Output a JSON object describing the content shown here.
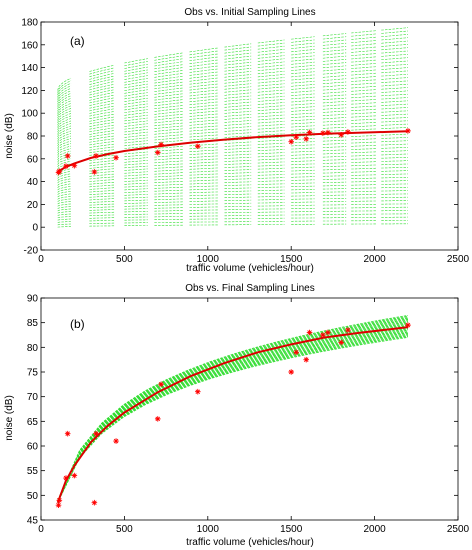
{
  "colors": {
    "sampling_lines": "#33dd33",
    "fit_line": "#dd0000",
    "observations": "#ff0000",
    "axes": "#000000"
  },
  "chart_data": [
    {
      "type": "line",
      "title": "Obs vs. Initial Sampling Lines",
      "panel_label": "(a)",
      "xlabel": "traffic volume (vehicles/hour)",
      "ylabel": "noise (dB)",
      "xlim": [
        0,
        2500
      ],
      "ylim": [
        -20,
        180
      ],
      "xticks": [
        0,
        500,
        1000,
        1500,
        2000,
        2500
      ],
      "yticks": [
        -20,
        0,
        20,
        40,
        60,
        80,
        100,
        120,
        140,
        160,
        180
      ],
      "series": [
        {
          "kind": "sampling_lines",
          "style": "dashed",
          "x_start": 100,
          "x_end": 2200,
          "x_segments": [
            [
              100,
              180
            ],
            [
              290,
              440
            ],
            [
              500,
              640
            ],
            [
              680,
              850
            ],
            [
              890,
              1060
            ],
            [
              1100,
              1260
            ],
            [
              1300,
              1460
            ],
            [
              1500,
              1640
            ],
            [
              1690,
              1830
            ],
            [
              1860,
              2010
            ],
            [
              2040,
              2200
            ]
          ],
          "min_at_start": 0,
          "max_at_start": 120,
          "min_at_end": 3,
          "max_at_end": 175
        },
        {
          "kind": "fit",
          "style": "solid",
          "x": [
            100,
            150,
            200,
            300,
            400,
            500,
            700,
            900,
            1100,
            1300,
            1500,
            1700,
            1900,
            2100,
            2200
          ],
          "y": [
            48.5,
            53.0,
            56.0,
            60.8,
            64.1,
            66.8,
            70.9,
            74.2,
            76.8,
            79.0,
            80.6,
            82.0,
            82.9,
            83.7,
            84.1
          ]
        },
        {
          "kind": "observations",
          "style": "asterisk",
          "x": [
            105,
            110,
            150,
            160,
            200,
            320,
            330,
            450,
            700,
            720,
            940,
            1500,
            1530,
            1590,
            1610,
            1690,
            1720,
            1800,
            1840,
            2200
          ],
          "y": [
            48,
            49,
            53.5,
            62.5,
            54,
            48.5,
            62.5,
            61,
            65.5,
            72.5,
            71,
            75,
            79,
            77.5,
            83,
            82.5,
            83,
            81,
            83.5,
            84.5
          ]
        }
      ]
    },
    {
      "type": "line",
      "title": "Obs vs. Final Sampling Lines",
      "panel_label": "(b)",
      "xlabel": "traffic volume (vehicles/hour)",
      "ylabel": "noise (dB)",
      "xlim": [
        0,
        2500
      ],
      "ylim": [
        45,
        90
      ],
      "xticks": [
        0,
        500,
        1000,
        1500,
        2000,
        2500
      ],
      "yticks": [
        45,
        50,
        55,
        60,
        65,
        70,
        75,
        80,
        85,
        90
      ],
      "series": [
        {
          "kind": "sampling_lines",
          "style": "dashed",
          "x_start": 100,
          "x_end": 2200,
          "min_at_start": 48.5,
          "max_at_start": 49.0,
          "min_at_end": 82.0,
          "max_at_end": 86.5
        },
        {
          "kind": "fit",
          "style": "solid",
          "x": [
            100,
            150,
            200,
            300,
            400,
            500,
            700,
            900,
            1100,
            1300,
            1500,
            1700,
            1900,
            2100,
            2200
          ],
          "y": [
            48.5,
            53.0,
            56.0,
            60.8,
            64.1,
            66.8,
            70.9,
            74.2,
            76.8,
            79.0,
            80.6,
            82.0,
            82.9,
            83.7,
            84.1
          ]
        },
        {
          "kind": "observations",
          "style": "asterisk",
          "x": [
            105,
            110,
            150,
            160,
            200,
            320,
            330,
            450,
            700,
            720,
            940,
            1500,
            1530,
            1590,
            1610,
            1690,
            1720,
            1800,
            1840,
            2200
          ],
          "y": [
            48,
            49,
            53.5,
            62.5,
            54,
            48.5,
            62.5,
            61,
            65.5,
            72.5,
            71,
            75,
            79,
            77.5,
            83,
            82.5,
            83,
            81,
            83.5,
            84.5
          ]
        }
      ]
    }
  ]
}
